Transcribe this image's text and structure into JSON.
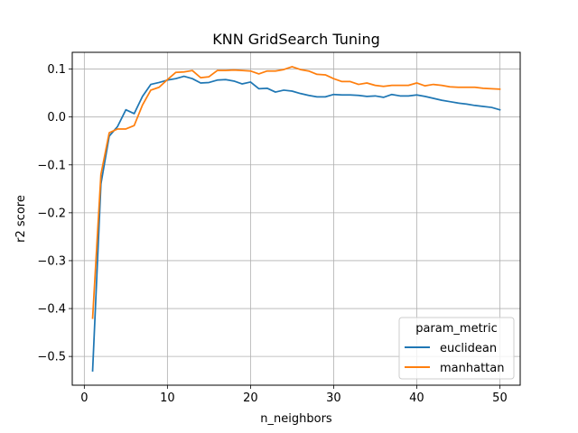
{
  "chart_data": {
    "type": "line",
    "title": "KNN GridSearch Tuning",
    "xlabel": "n_neighbors",
    "ylabel": "r2 score",
    "xlim": [
      -1.45,
      52.45
    ],
    "ylim": [
      -0.56,
      0.135
    ],
    "xticks": [
      "0",
      "10",
      "20",
      "30",
      "40",
      "50"
    ],
    "xtick_values": [
      0,
      10,
      20,
      30,
      40,
      50
    ],
    "yticks": [
      "−0.5",
      "−0.4",
      "−0.3",
      "−0.2",
      "−0.1",
      "0.0",
      "0.1"
    ],
    "ytick_values": [
      -0.5,
      -0.4,
      -0.3,
      -0.2,
      -0.1,
      0.0,
      0.1
    ],
    "grid": true,
    "legend": {
      "title": "param_metric",
      "placement": "lower-right"
    },
    "x": [
      1,
      2,
      3,
      4,
      5,
      6,
      7,
      8,
      9,
      10,
      11,
      12,
      13,
      14,
      15,
      16,
      17,
      18,
      19,
      20,
      21,
      22,
      23,
      24,
      25,
      26,
      27,
      28,
      29,
      30,
      31,
      32,
      33,
      34,
      35,
      36,
      37,
      38,
      39,
      40,
      41,
      42,
      43,
      44,
      45,
      46,
      47,
      48,
      49,
      50
    ],
    "series": [
      {
        "name": "euclidean",
        "color": "#1f77b4",
        "values": [
          -0.53,
          -0.14,
          -0.04,
          -0.02,
          0.015,
          0.007,
          0.043,
          0.068,
          0.072,
          0.077,
          0.08,
          0.085,
          0.08,
          0.071,
          0.072,
          0.077,
          0.078,
          0.075,
          0.069,
          0.073,
          0.059,
          0.06,
          0.052,
          0.056,
          0.054,
          0.049,
          0.045,
          0.042,
          0.042,
          0.047,
          0.046,
          0.046,
          0.045,
          0.043,
          0.044,
          0.041,
          0.047,
          0.044,
          0.044,
          0.046,
          0.043,
          0.039,
          0.035,
          0.032,
          0.029,
          0.027,
          0.024,
          0.022,
          0.02,
          0.015
        ]
      },
      {
        "name": "manhattan",
        "color": "#ff7f0e",
        "values": [
          -0.42,
          -0.12,
          -0.033,
          -0.025,
          -0.025,
          -0.018,
          0.025,
          0.056,
          0.062,
          0.078,
          0.093,
          0.094,
          0.097,
          0.082,
          0.084,
          0.097,
          0.097,
          0.098,
          0.097,
          0.096,
          0.09,
          0.096,
          0.096,
          0.099,
          0.105,
          0.099,
          0.096,
          0.089,
          0.088,
          0.08,
          0.074,
          0.074,
          0.068,
          0.071,
          0.066,
          0.064,
          0.066,
          0.066,
          0.066,
          0.071,
          0.065,
          0.068,
          0.066,
          0.063,
          0.062,
          0.062,
          0.062,
          0.06,
          0.059,
          0.058
        ]
      }
    ]
  }
}
